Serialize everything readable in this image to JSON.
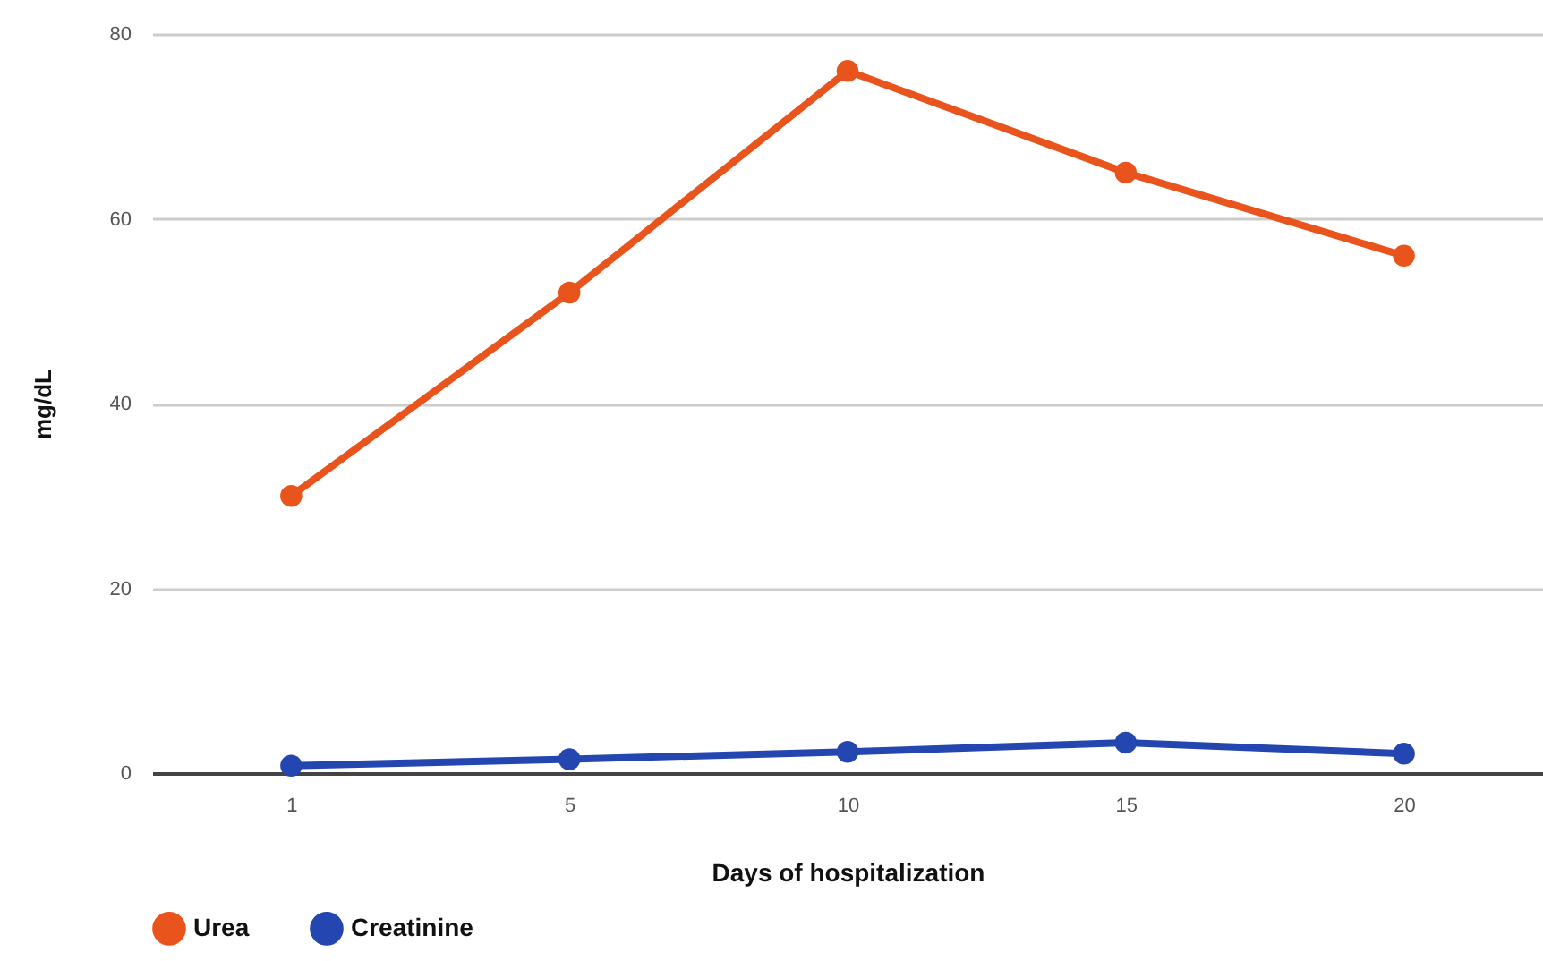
{
  "chart_data": {
    "type": "line",
    "xlabel": "Days of hospitalization",
    "ylabel": "mg/dL",
    "categories": [
      "1",
      "5",
      "10",
      "15",
      "20"
    ],
    "ylim": [
      0,
      80
    ],
    "yticks": [
      0,
      20,
      40,
      60,
      80
    ],
    "grid": "y",
    "legend": "bottom",
    "marker": "circle",
    "line_style": "solid",
    "series": [
      {
        "name": "Urea",
        "color": "#e8541c",
        "values": [
          30,
          52,
          76,
          65,
          56
        ]
      },
      {
        "name": "Creatinine",
        "color": "#2346b0",
        "values": [
          0.8,
          1.5,
          2.3,
          3.3,
          2.1
        ]
      }
    ]
  }
}
